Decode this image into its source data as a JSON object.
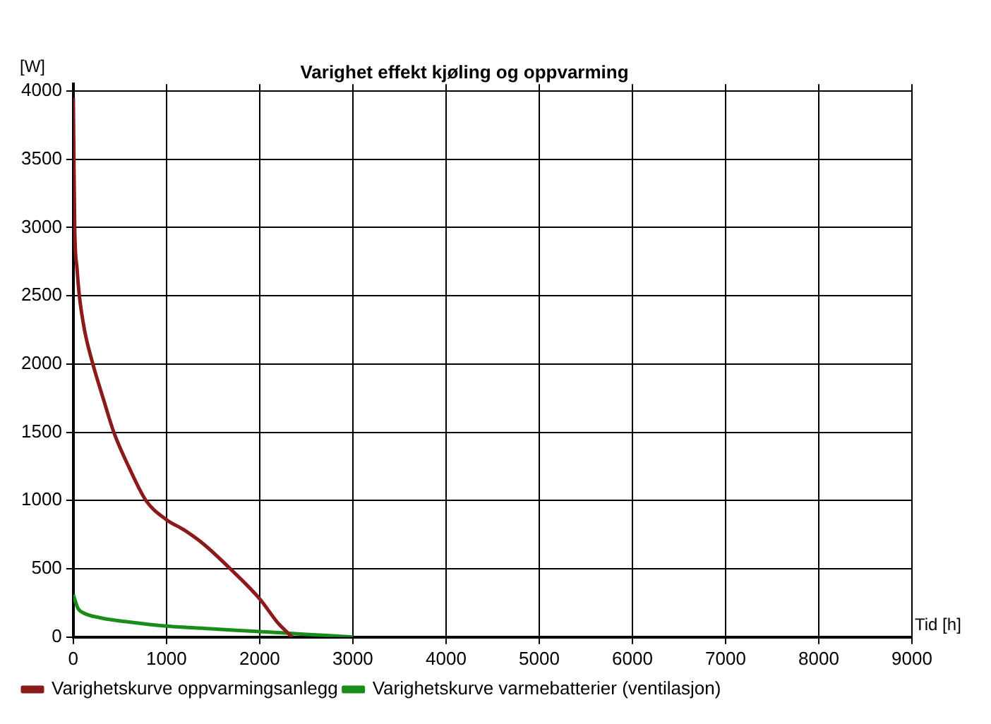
{
  "chart_data": {
    "type": "line",
    "title": "Varighet effekt kjøling og oppvarming",
    "xlabel": "Tid [h]",
    "ylabel": "[W]",
    "xlim": [
      0,
      9000
    ],
    "xticks": [
      0,
      1000,
      2000,
      3000,
      4000,
      5000,
      6000,
      7000,
      8000,
      9000
    ],
    "ylim": [
      0,
      4050
    ],
    "yticks": [
      0,
      500,
      1000,
      1500,
      2000,
      2500,
      3000,
      3500,
      4000
    ],
    "grid": true,
    "legend": "bottom left",
    "marker": "none",
    "line_style": "solid",
    "series": [
      {
        "name": "Varighetskurve oppvarmingsanlegg",
        "color": "#8b1a1a",
        "x": [
          0,
          5,
          15,
          40,
          65,
          120,
          210,
          320,
          435,
          600,
          780,
          1000,
          1200,
          1400,
          1700,
          2000,
          2200,
          2350
        ],
        "values": [
          3950,
          3600,
          3000,
          2700,
          2500,
          2250,
          2000,
          1750,
          1500,
          1240,
          1000,
          860,
          780,
          680,
          490,
          280,
          100,
          0
        ]
      },
      {
        "name": "Varighetskurve varmebatterier (ventilasjon)",
        "color": "#1a8c1a",
        "x": [
          0,
          50,
          100,
          300,
          600,
          1000,
          1500,
          2000,
          2500,
          3000
        ],
        "values": [
          310,
          210,
          180,
          140,
          110,
          80,
          60,
          40,
          20,
          0
        ]
      }
    ]
  }
}
